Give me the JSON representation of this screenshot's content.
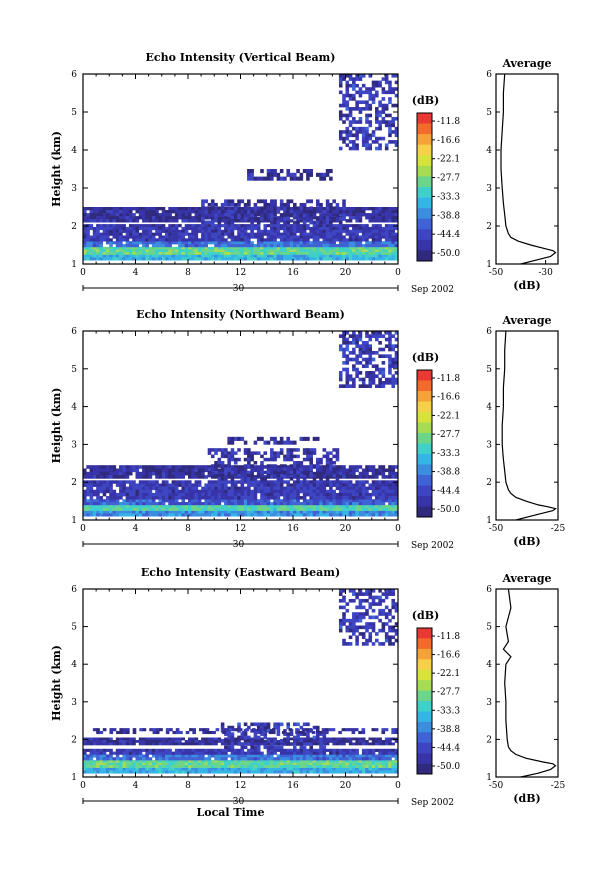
{
  "figure": {
    "date_label": "Sep 2002",
    "xlabel_bottom": "Local Time",
    "colorbar_unit": "(dB)",
    "colorbar_ticks": [
      "-11.8",
      "-16.6",
      "-22.1",
      "-27.7",
      "-33.3",
      "-38.8",
      "-44.4",
      "-50.0"
    ],
    "colorbar_colors": [
      "#e83a32",
      "#f26b2b",
      "#f6a23a",
      "#f6d04a",
      "#d8e23c",
      "#a6dc54",
      "#6bd68a",
      "#3fd1c9",
      "#35b5e6",
      "#3b8de0",
      "#3f63d4",
      "#3d45c2",
      "#3733a8",
      "#2f2a7e"
    ],
    "day_label": "30",
    "avg_title": "Average",
    "avg_xlabel": "(dB)"
  },
  "chart_data": [
    {
      "type": "heatmap",
      "title": "Echo Intensity (Vertical Beam)",
      "ylabel": "Height (km)",
      "xlabel": "",
      "x_ticks": [
        "0",
        "4",
        "8",
        "12",
        "16",
        "20",
        "0"
      ],
      "y_ticks": [
        "1",
        "2",
        "3",
        "4",
        "5",
        "6"
      ],
      "ylim": [
        1,
        6
      ],
      "xlim": [
        0,
        24
      ],
      "zlim": [
        -50.0,
        -11.8
      ],
      "layers": [
        {
          "y_from": 1.1,
          "y_to": 1.25,
          "level": -35
        },
        {
          "y_from": 1.25,
          "y_to": 1.45,
          "level": -30
        },
        {
          "y_from": 1.45,
          "y_to": 1.6,
          "level": -40
        },
        {
          "y_from": 1.6,
          "y_to": 2.05,
          "level": -46
        },
        {
          "y_from": 2.1,
          "y_to": 2.5,
          "level": -48
        }
      ],
      "patches": [
        {
          "x_from": 19.5,
          "x_to": 24,
          "y_from": 4.0,
          "y_to": 6.0,
          "level": -46
        },
        {
          "x_from": 9.0,
          "x_to": 20.0,
          "y_from": 2.05,
          "y_to": 2.7,
          "level": -47
        },
        {
          "x_from": 12.0,
          "x_to": 19.0,
          "y_from": 3.2,
          "y_to": 3.5,
          "level": -48
        }
      ],
      "avg": {
        "xlim": [
          -50,
          -25
        ],
        "x_ticks": [
          "-50",
          "-30"
        ],
        "x_tick_values": [
          -50,
          -30
        ],
        "y": [
          1.0,
          1.1,
          1.2,
          1.3,
          1.35,
          1.4,
          1.5,
          1.6,
          1.7,
          1.8,
          2.0,
          2.3,
          2.6,
          3.0,
          3.5,
          4.0,
          4.5,
          5.0,
          5.5,
          6.0
        ],
        "x": [
          -40,
          -34,
          -28,
          -26,
          -27,
          -30,
          -36,
          -41,
          -44,
          -45,
          -46,
          -46.5,
          -47,
          -47.5,
          -48,
          -48,
          -47.5,
          -47,
          -47,
          -46.5
        ]
      }
    },
    {
      "type": "heatmap",
      "title": "Echo Intensity (Northward Beam)",
      "ylabel": "Height (km)",
      "xlabel": "",
      "x_ticks": [
        "0",
        "4",
        "8",
        "12",
        "16",
        "20",
        "0"
      ],
      "y_ticks": [
        "1",
        "2",
        "3",
        "4",
        "5",
        "6"
      ],
      "ylim": [
        1,
        6
      ],
      "xlim": [
        0,
        24
      ],
      "zlim": [
        -50.0,
        -11.8
      ],
      "layers": [
        {
          "y_from": 1.1,
          "y_to": 1.25,
          "level": -38
        },
        {
          "y_from": 1.25,
          "y_to": 1.4,
          "level": -31
        },
        {
          "y_from": 1.4,
          "y_to": 1.55,
          "level": -42
        },
        {
          "y_from": 1.55,
          "y_to": 2.05,
          "level": -46
        },
        {
          "y_from": 2.1,
          "y_to": 2.45,
          "level": -48
        }
      ],
      "patches": [
        {
          "x_from": 19.5,
          "x_to": 24,
          "y_from": 4.5,
          "y_to": 6.0,
          "level": -46
        },
        {
          "x_from": 9.5,
          "x_to": 19.5,
          "y_from": 2.05,
          "y_to": 2.9,
          "level": -47
        },
        {
          "x_from": 11.0,
          "x_to": 18.0,
          "y_from": 3.0,
          "y_to": 3.2,
          "level": -48
        }
      ],
      "avg": {
        "xlim": [
          -50,
          -25
        ],
        "x_ticks": [
          "-50",
          "-25"
        ],
        "x_tick_values": [
          -50,
          -25
        ],
        "y": [
          1.0,
          1.1,
          1.2,
          1.25,
          1.3,
          1.35,
          1.4,
          1.5,
          1.6,
          1.7,
          1.8,
          2.0,
          2.3,
          2.6,
          3.0,
          3.5,
          4.0,
          4.5,
          5.0,
          5.5,
          6.0
        ],
        "x": [
          -42,
          -36,
          -30,
          -27,
          -26,
          -29,
          -33,
          -38,
          -42,
          -44,
          -45,
          -46,
          -46.5,
          -47,
          -47.5,
          -47.5,
          -47,
          -47,
          -46.5,
          -46.5,
          -46
        ]
      }
    },
    {
      "type": "heatmap",
      "title": "Echo Intensity (Eastward Beam)",
      "ylabel": "Height (km)",
      "xlabel": "Local Time",
      "x_ticks": [
        "0",
        "4",
        "8",
        "12",
        "16",
        "20",
        "0"
      ],
      "y_ticks": [
        "1",
        "2",
        "3",
        "4",
        "5",
        "6"
      ],
      "ylim": [
        1,
        6
      ],
      "xlim": [
        0,
        24
      ],
      "zlim": [
        -50.0,
        -11.8
      ],
      "layers": [
        {
          "y_from": 1.1,
          "y_to": 1.25,
          "level": -36
        },
        {
          "y_from": 1.25,
          "y_to": 1.45,
          "level": -30
        },
        {
          "y_from": 1.45,
          "y_to": 1.6,
          "level": -40
        },
        {
          "y_from": 1.6,
          "y_to": 1.75,
          "level": -46
        },
        {
          "y_from": 1.85,
          "y_to": 2.05,
          "level": -48
        }
      ],
      "patches": [
        {
          "x_from": 19.5,
          "x_to": 24,
          "y_from": 4.5,
          "y_to": 6.0,
          "level": -46
        },
        {
          "x_from": 10.5,
          "x_to": 18.5,
          "y_from": 1.75,
          "y_to": 2.45,
          "level": -46
        },
        {
          "x_from": 0.5,
          "x_to": 24,
          "y_from": 2.15,
          "y_to": 2.3,
          "level": -48
        }
      ],
      "avg": {
        "xlim": [
          -50,
          -25
        ],
        "x_ticks": [
          "-50",
          "-25"
        ],
        "x_tick_values": [
          -50,
          -25
        ],
        "y": [
          1.0,
          1.1,
          1.2,
          1.3,
          1.35,
          1.4,
          1.5,
          1.6,
          1.7,
          1.8,
          2.0,
          2.5,
          3.0,
          3.5,
          4.0,
          4.2,
          4.4,
          4.6,
          5.0,
          5.5,
          6.0
        ],
        "x": [
          -40,
          -33,
          -28,
          -26,
          -27,
          -31,
          -38,
          -42,
          -44,
          -45,
          -45.5,
          -46,
          -46,
          -46.5,
          -46,
          -44,
          -47,
          -45,
          -46,
          -44,
          -45
        ]
      }
    }
  ]
}
